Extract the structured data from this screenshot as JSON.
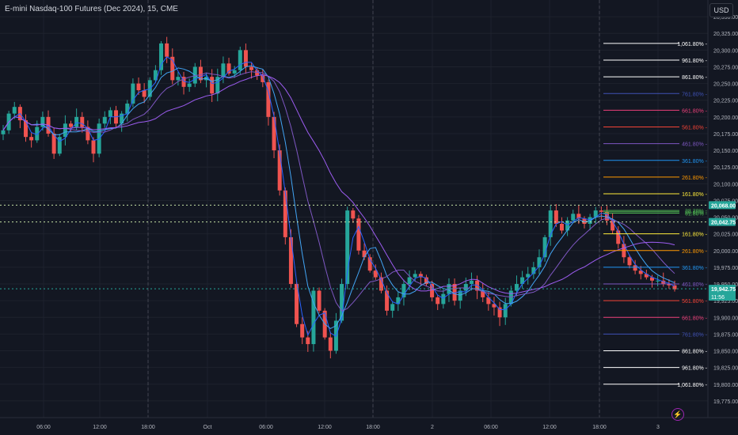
{
  "header": {
    "title": "E-mini Nasdaq-100 Futures (Dec 2024), 15, CME",
    "currency": "USD"
  },
  "colors": {
    "background": "#131722",
    "up": "#26a69a",
    "down": "#ef5350",
    "grid": "#1e222d",
    "axis_text": "#b2b5be",
    "session_line": "#434651",
    "current_price": "#26a69a"
  },
  "chart_data": {
    "type": "candlestick",
    "symbol": "E-mini Nasdaq-100 Futures (Dec 2024)",
    "interval": "15",
    "exchange": "CME",
    "ylim": [
      19750,
      20375
    ],
    "y_ticks": [
      19775,
      19800,
      19825,
      19850,
      19875,
      19900,
      19925,
      19950,
      19975,
      20000,
      20025,
      20050,
      20075,
      20100,
      20125,
      20150,
      20175,
      20200,
      20225,
      20250,
      20275,
      20300,
      20325,
      20350
    ],
    "y_tick_labels": [
      "19,775.00",
      "19,800.00",
      "19,825.00",
      "19,850.00",
      "19,875.00",
      "19,900.00",
      "19,925.00",
      "19,950.00",
      "19,975.00",
      "20,000.00",
      "20,025.00",
      "20,050.00",
      "20,075.00",
      "20,100.00",
      "20,125.00",
      "20,150.00",
      "20,175.00",
      "20,200.00",
      "20,225.00",
      "20,250.00",
      "20,275.00",
      "20,300.00",
      "20,325.00",
      "20,350.00"
    ],
    "x_ticks": [
      "06:00",
      "12:00",
      "18:00",
      "Oct",
      "06:00",
      "12:00",
      "18:00",
      "2",
      "06:00",
      "12:00",
      "18:00",
      "3"
    ],
    "session_breaks": [
      "18:00",
      "18:00",
      "18:00"
    ],
    "price_path": [
      20180,
      20205,
      20215,
      20195,
      20170,
      20165,
      20185,
      20200,
      20175,
      20145,
      20170,
      20190,
      20185,
      20200,
      20185,
      20165,
      20145,
      20190,
      20200,
      20210,
      20190,
      20205,
      20220,
      20250,
      20240,
      20230,
      20255,
      20270,
      20310,
      20290,
      20255,
      20260,
      20245,
      20250,
      20275,
      20255,
      20260,
      20235,
      20260,
      20280,
      20265,
      20270,
      20300,
      20275,
      20270,
      20262,
      20252,
      20200,
      20150,
      20090,
      20020,
      19950,
      19890,
      19870,
      19860,
      19940,
      19910,
      19870,
      19850,
      19895,
      19950,
      20060,
      20048,
      20000,
      19990,
      19970,
      19960,
      19940,
      19910,
      19920,
      19930,
      19950,
      19960,
      19965,
      19960,
      19950,
      19930,
      19920,
      19935,
      19950,
      19925,
      19940,
      19950,
      19955,
      19940,
      19930,
      19920,
      19915,
      19900,
      19920,
      19940,
      19950,
      19960,
      19965,
      19975,
      19990,
      20020,
      20060,
      20040,
      20030,
      20045,
      20055,
      20048,
      20040,
      20050,
      20060,
      20058,
      20045,
      20030,
      20010,
      19990,
      19978,
      19970,
      19965,
      19960,
      19955,
      19955,
      19950,
      19948,
      19942
    ],
    "moving_averages": [
      {
        "color": "#2962ff",
        "period": 9
      },
      {
        "color": "#42a5f5",
        "period": 20
      },
      {
        "color": "#7e57c2",
        "period": 40
      },
      {
        "color": "#9c5cf0",
        "period": 90
      }
    ],
    "horizontal_lines": [
      {
        "price": 20068.0,
        "color": "#c5e1a5",
        "style": "dotted",
        "label": "20,068.00",
        "label_bg": "#26a69a"
      },
      {
        "price": 20042.75,
        "color": "#c5e1a5",
        "style": "dotted",
        "label": "20,042.75",
        "label_bg": "#26a69a"
      },
      {
        "price": 19942.75,
        "color": "#26a69a",
        "style": "dotted",
        "label": "19,942.75",
        "label_bg": "#26a69a",
        "sublabel": "11:56"
      }
    ],
    "fib_upper": [
      {
        "label": "1,061.80%",
        "price": 20310,
        "color": "#ffffff"
      },
      {
        "label": "961.80%",
        "price": 20285,
        "color": "#ffffff"
      },
      {
        "label": "861.80%",
        "price": 20260,
        "color": "#ffffff"
      },
      {
        "label": "761.80%",
        "price": 20235,
        "color": "#3f51b5"
      },
      {
        "label": "661.80%",
        "price": 20210,
        "color": "#ec407a"
      },
      {
        "label": "561.80%",
        "price": 20185,
        "color": "#f44336"
      },
      {
        "label": "461.80%",
        "price": 20160,
        "color": "#7e57c2"
      },
      {
        "label": "361.80%",
        "price": 20135,
        "color": "#2196f3"
      },
      {
        "label": "261.80%",
        "price": 20110,
        "color": "#ff9800"
      },
      {
        "label": "161.80%",
        "price": 20085,
        "color": "#ffeb3b"
      },
      {
        "label": "38.20%",
        "price": 20060,
        "color": "#4caf50"
      },
      {
        "label": "50.00%",
        "price": 20058,
        "color": "#4caf50"
      },
      {
        "label": "61.80%",
        "price": 20056,
        "color": "#4caf50"
      }
    ],
    "fib_lower": [
      {
        "label": "161.80%",
        "price": 20025,
        "color": "#ffeb3b"
      },
      {
        "label": "261.80%",
        "price": 20000,
        "color": "#ff9800"
      },
      {
        "label": "361.80%",
        "price": 19975,
        "color": "#2196f3"
      },
      {
        "label": "461.80%",
        "price": 19950,
        "color": "#7e57c2"
      },
      {
        "label": "561.80%",
        "price": 19925,
        "color": "#f44336"
      },
      {
        "label": "661.80%",
        "price": 19900,
        "color": "#ec407a"
      },
      {
        "label": "761.80%",
        "price": 19875,
        "color": "#3f51b5"
      },
      {
        "label": "861.80%",
        "price": 19850,
        "color": "#ffffff"
      },
      {
        "label": "961.80%",
        "price": 19825,
        "color": "#ffffff"
      },
      {
        "label": "1,061.80%",
        "price": 19800,
        "color": "#ffffff"
      }
    ]
  }
}
